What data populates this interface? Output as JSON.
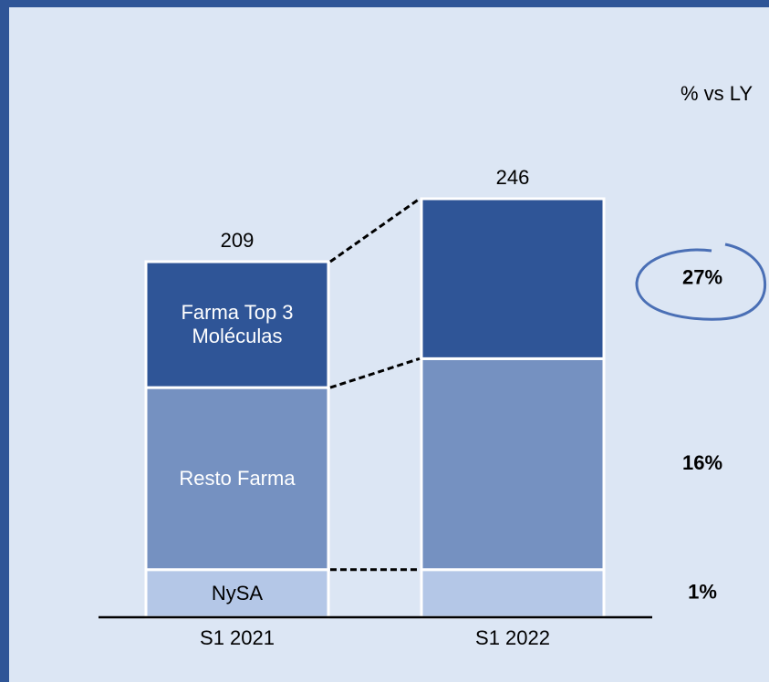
{
  "chart_data": {
    "type": "stacked_bar",
    "categories": [
      "S1 2021",
      "S1 2022"
    ],
    "series": [
      {
        "name": "NySA",
        "color": "#b4c7e7",
        "values": [
          28,
          28
        ]
      },
      {
        "name": "Resto Farma",
        "color": "#7591c1",
        "values": [
          107,
          124
        ]
      },
      {
        "name": "Farma Top 3 Moléculas",
        "color": "#2f5597",
        "values": [
          74,
          94
        ]
      }
    ],
    "totals": [
      209,
      246
    ],
    "change_header": "% vs LY",
    "change": {
      "values": [
        1,
        16,
        27
      ],
      "value_labels": [
        "1%",
        "16%",
        "27%"
      ]
    },
    "connectors": true
  }
}
